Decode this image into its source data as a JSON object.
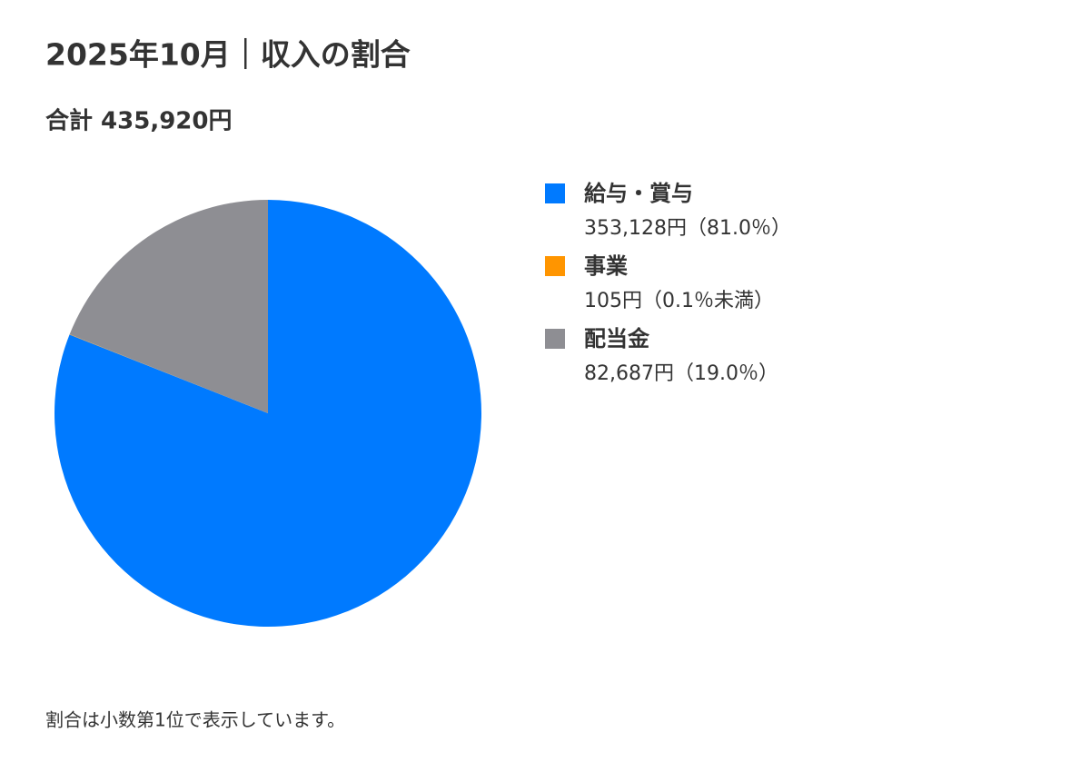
{
  "chart_data": {
    "type": "pie",
    "title": "2025年10月｜収入の割合",
    "subtitle": "合計 435,920円",
    "categories": [
      "給与・賞与",
      "事業",
      "配当金"
    ],
    "values": [
      353128,
      105,
      82687
    ],
    "value_labels": [
      "353,128円（81.0％）",
      "105円（0.1％未満）",
      "82,687円（19.0％）"
    ],
    "colors": [
      "#007aff",
      "#ff9500",
      "#8e8e93"
    ],
    "note": "割合は小数第1位で表示しています。"
  }
}
